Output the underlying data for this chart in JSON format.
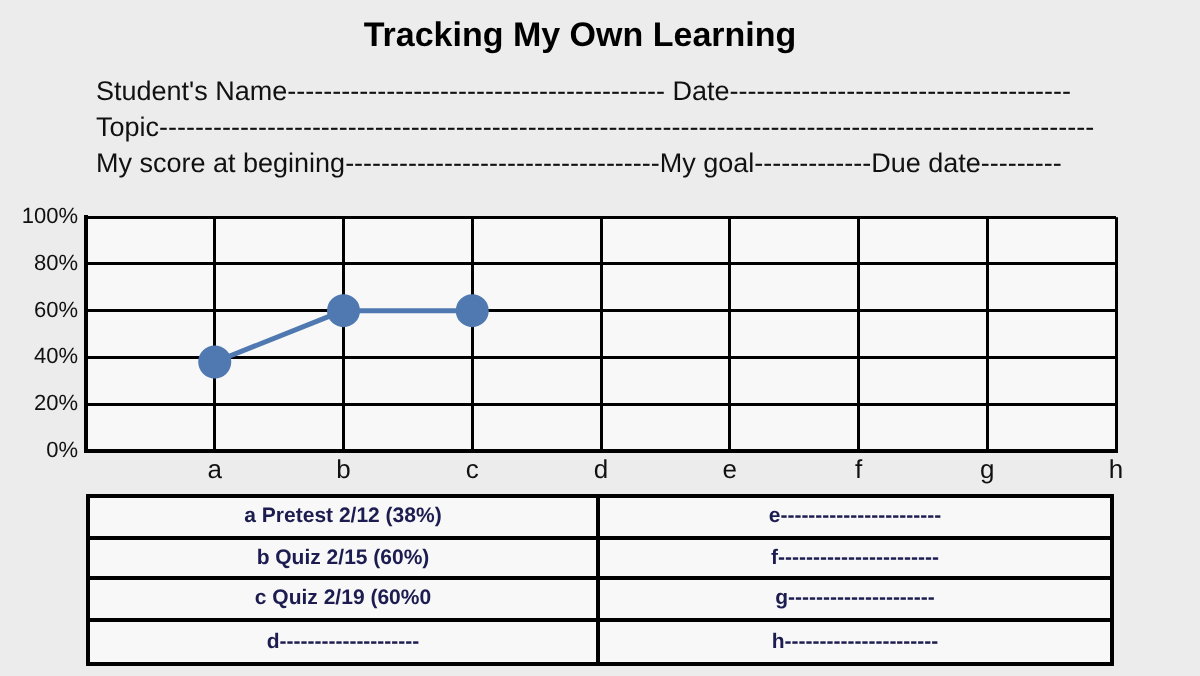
{
  "chart_data": {
    "type": "line",
    "title": "Tracking My Own Learning",
    "annotations": [
      "Student's Name------------------------------------------ Date--------------------------------------",
      "Topic--------------------------------------------------------------------------------------------------------",
      "My score at begining-----------------------------------My goal-------------Due date---------",
      "a Pretest 2/12 (38%)",
      "b Quiz 2/15 (60%)",
      "c Quiz 2/19 (60%0",
      "d--------------------",
      "e-----------------------",
      "f-----------------------",
      "g---------------------",
      "h----------------------"
    ],
    "categories": [
      "a",
      "b",
      "c",
      "d",
      "e",
      "f",
      "g",
      "h"
    ],
    "series": [
      {
        "color": "#4f79b0",
        "values": [
          38,
          60,
          60,
          null,
          null,
          null,
          null,
          null
        ]
      }
    ],
    "ylim": [
      0,
      100
    ],
    "yticks": [
      {
        "value": 0,
        "label": "0%"
      },
      {
        "value": 20,
        "label": "20%"
      },
      {
        "value": 40,
        "label": "40%"
      },
      {
        "value": 60,
        "label": "60%"
      },
      {
        "value": 80,
        "label": "80%"
      },
      {
        "value": 100,
        "label": "100%"
      }
    ],
    "grid": true,
    "legend": false,
    "marker": "circle",
    "line_style": "solid"
  }
}
